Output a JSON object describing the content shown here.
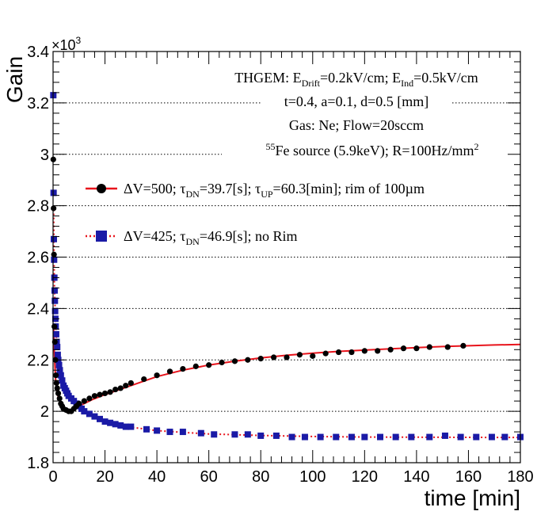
{
  "chart_data": {
    "type": "scatter",
    "xlabel": "time [min]",
    "ylabel": "Gain",
    "xlim": [
      0,
      180
    ],
    "ylim": [
      1.8,
      3.4
    ],
    "multiplier": "×10",
    "multiplier_exp": "3",
    "x_ticks": [
      {
        "value": 0,
        "label": "0"
      },
      {
        "value": 20,
        "label": "20"
      },
      {
        "value": 40,
        "label": "40"
      },
      {
        "value": 60,
        "label": "60"
      },
      {
        "value": 80,
        "label": "80"
      },
      {
        "value": 100,
        "label": "100"
      },
      {
        "value": 120,
        "label": "120"
      },
      {
        "value": 140,
        "label": "140"
      },
      {
        "value": 160,
        "label": "160"
      },
      {
        "value": 180,
        "label": "180"
      }
    ],
    "y_ticks": [
      {
        "value": 1.8,
        "label": "1.8"
      },
      {
        "value": 2.0,
        "label": "2"
      },
      {
        "value": 2.2,
        "label": "2.2"
      },
      {
        "value": 2.4,
        "label": "2.4"
      },
      {
        "value": 2.6,
        "label": "2.6"
      },
      {
        "value": 2.8,
        "label": "2.8"
      },
      {
        "value": 3.0,
        "label": "3"
      },
      {
        "value": 3.2,
        "label": "3.2"
      },
      {
        "value": 3.4,
        "label": "3.4"
      }
    ],
    "gridlines_y": [
      2.0,
      2.2,
      2.4,
      2.6,
      2.8,
      3.0,
      3.2
    ],
    "annotations": [
      {
        "id": "a1",
        "parts": [
          "THGEM: E",
          "Drift",
          "=0.2kV/cm; E",
          "Ind",
          "=0.5kV/cm"
        ]
      },
      {
        "id": "a2",
        "text": "t=0.4, a=0.1, d=0.5 [mm]"
      },
      {
        "id": "a3",
        "text": "Gas: Ne; Flow=20sccm"
      },
      {
        "id": "a4",
        "parts": [
          "55",
          "Fe source (5.9keV); R=100Hz/mm",
          "2"
        ]
      }
    ],
    "legend": [
      {
        "id": "black",
        "parts": [
          "ΔV=500; τ",
          "DN",
          "=39.7[s]; τ",
          "UP",
          "=60.3[min]; rim of 100µm"
        ],
        "marker": "circle",
        "color": "#000000",
        "line_color": "#e8141c",
        "line_style": "solid"
      },
      {
        "id": "blue",
        "parts": [
          "ΔV=425; τ",
          "DN",
          "=46.9[s]; no Rim"
        ],
        "marker": "square",
        "color": "#1a1aa6",
        "line_color": "#e8141c",
        "line_style": "dotted"
      }
    ],
    "series": [
      {
        "name": "ΔV=500; rim of 100µm",
        "marker": "circle",
        "color": "#000000",
        "points": [
          [
            0.1,
            2.98
          ],
          [
            0.2,
            2.79
          ],
          [
            0.35,
            2.61
          ],
          [
            0.5,
            2.33
          ],
          [
            0.7,
            2.27
          ],
          [
            0.9,
            2.2
          ],
          [
            1.1,
            2.14
          ],
          [
            1.3,
            2.11
          ],
          [
            1.6,
            2.09
          ],
          [
            2.0,
            2.07
          ],
          [
            2.5,
            2.05
          ],
          [
            3.0,
            2.03
          ],
          [
            3.5,
            2.02
          ],
          [
            4.0,
            2.01
          ],
          [
            5.0,
            2.005
          ],
          [
            6.0,
            2.0
          ],
          [
            7.0,
            2.0
          ],
          [
            8.0,
            2.01
          ],
          [
            9.0,
            2.02
          ],
          [
            10.0,
            2.03
          ],
          [
            12.0,
            2.04
          ],
          [
            14.0,
            2.05
          ],
          [
            16.0,
            2.06
          ],
          [
            18.0,
            2.065
          ],
          [
            20.0,
            2.07
          ],
          [
            22.0,
            2.075
          ],
          [
            24.0,
            2.085
          ],
          [
            26.0,
            2.09
          ],
          [
            28.0,
            2.1
          ],
          [
            30.0,
            2.11
          ],
          [
            35.0,
            2.125
          ],
          [
            40.0,
            2.14
          ],
          [
            45.0,
            2.155
          ],
          [
            50.0,
            2.165
          ],
          [
            55.0,
            2.175
          ],
          [
            60.0,
            2.18
          ],
          [
            65.0,
            2.19
          ],
          [
            70.0,
            2.195
          ],
          [
            75.0,
            2.2
          ],
          [
            80.0,
            2.205
          ],
          [
            85.0,
            2.21
          ],
          [
            90.0,
            2.21
          ],
          [
            95.0,
            2.22
          ],
          [
            100.0,
            2.215
          ],
          [
            105.0,
            2.225
          ],
          [
            110.0,
            2.23
          ],
          [
            115.0,
            2.23
          ],
          [
            120.0,
            2.235
          ],
          [
            125.0,
            2.235
          ],
          [
            130.0,
            2.24
          ],
          [
            135.0,
            2.245
          ],
          [
            140.0,
            2.245
          ],
          [
            145.0,
            2.25
          ],
          [
            152.0,
            2.25
          ],
          [
            158.0,
            2.255
          ]
        ],
        "fit": [
          [
            0.2,
            2.32
          ],
          [
            0.4,
            2.25
          ],
          [
            0.7,
            2.18
          ],
          [
            1.0,
            2.12
          ],
          [
            1.5,
            2.08
          ],
          [
            2.0,
            2.055
          ],
          [
            3.0,
            2.03
          ],
          [
            4.0,
            2.015
          ],
          [
            5.0,
            2.008
          ],
          [
            6.0,
            2.005
          ],
          [
            8.0,
            2.008
          ],
          [
            10.0,
            2.02
          ],
          [
            15.0,
            2.045
          ],
          [
            20.0,
            2.065
          ],
          [
            30.0,
            2.1
          ],
          [
            40.0,
            2.135
          ],
          [
            50.0,
            2.16
          ],
          [
            60.0,
            2.18
          ],
          [
            70.0,
            2.195
          ],
          [
            80.0,
            2.208
          ],
          [
            90.0,
            2.218
          ],
          [
            100.0,
            2.226
          ],
          [
            110.0,
            2.233
          ],
          [
            120.0,
            2.238
          ],
          [
            130.0,
            2.243
          ],
          [
            140.0,
            2.248
          ],
          [
            150.0,
            2.252
          ],
          [
            160.0,
            2.255
          ],
          [
            170.0,
            2.258
          ],
          [
            180.0,
            2.26
          ]
        ]
      },
      {
        "name": "ΔV=425; no Rim",
        "marker": "square",
        "color": "#1a1aa6",
        "points": [
          [
            0.1,
            3.23
          ],
          [
            0.2,
            2.85
          ],
          [
            0.3,
            2.67
          ],
          [
            0.4,
            2.59
          ],
          [
            0.5,
            2.52
          ],
          [
            0.6,
            2.47
          ],
          [
            0.7,
            2.43
          ],
          [
            0.8,
            2.39
          ],
          [
            0.9,
            2.36
          ],
          [
            1.0,
            2.33
          ],
          [
            1.2,
            2.3
          ],
          [
            1.4,
            2.27
          ],
          [
            1.6,
            2.25
          ],
          [
            1.8,
            2.22
          ],
          [
            2.0,
            2.2
          ],
          [
            2.3,
            2.18
          ],
          [
            2.6,
            2.16
          ],
          [
            3.0,
            2.14
          ],
          [
            3.5,
            2.12
          ],
          [
            4.0,
            2.1
          ],
          [
            4.5,
            2.09
          ],
          [
            5.0,
            2.08
          ],
          [
            5.5,
            2.07
          ],
          [
            6.0,
            2.06
          ],
          [
            7.0,
            2.05
          ],
          [
            8.0,
            2.04
          ],
          [
            9.0,
            2.03
          ],
          [
            10.0,
            2.02
          ],
          [
            11.0,
            2.01
          ],
          [
            12.0,
            2.0
          ],
          [
            14.0,
            1.99
          ],
          [
            16.0,
            1.98
          ],
          [
            18.0,
            1.97
          ],
          [
            20.0,
            1.96
          ],
          [
            22.0,
            1.955
          ],
          [
            24.0,
            1.95
          ],
          [
            26.0,
            1.945
          ],
          [
            28.0,
            1.94
          ],
          [
            30.0,
            1.94
          ],
          [
            36.0,
            1.93
          ],
          [
            40.0,
            1.925
          ],
          [
            45.0,
            1.92
          ],
          [
            50.0,
            1.92
          ],
          [
            57.0,
            1.915
          ],
          [
            62.0,
            1.91
          ],
          [
            70.0,
            1.91
          ],
          [
            75.0,
            1.91
          ],
          [
            80.0,
            1.905
          ],
          [
            86.0,
            1.905
          ],
          [
            92.0,
            1.9
          ],
          [
            97.0,
            1.9
          ],
          [
            103.0,
            1.9
          ],
          [
            109.0,
            1.9
          ],
          [
            115.0,
            1.9
          ],
          [
            120.0,
            1.9
          ],
          [
            126.0,
            1.9
          ],
          [
            132.0,
            1.9
          ],
          [
            138.0,
            1.9
          ],
          [
            145.0,
            1.9
          ],
          [
            151.0,
            1.905
          ],
          [
            157.0,
            1.9
          ],
          [
            163.0,
            1.9
          ],
          [
            169.0,
            1.9
          ],
          [
            174.0,
            1.9
          ],
          [
            180.0,
            1.9
          ]
        ],
        "fit": [
          [
            0.2,
            2.8
          ],
          [
            0.5,
            2.5
          ],
          [
            1.0,
            2.33
          ],
          [
            1.5,
            2.26
          ],
          [
            2.0,
            2.2
          ],
          [
            3.0,
            2.14
          ],
          [
            4.0,
            2.1
          ],
          [
            5.0,
            2.08
          ],
          [
            6.0,
            2.06
          ],
          [
            8.0,
            2.04
          ],
          [
            10.0,
            2.02
          ],
          [
            12.0,
            2.0
          ],
          [
            15.0,
            1.985
          ],
          [
            20.0,
            1.963
          ],
          [
            25.0,
            1.948
          ],
          [
            30.0,
            1.938
          ],
          [
            40.0,
            1.925
          ],
          [
            50.0,
            1.918
          ],
          [
            60.0,
            1.912
          ],
          [
            80.0,
            1.906
          ],
          [
            100.0,
            1.902
          ],
          [
            120.0,
            1.9
          ],
          [
            150.0,
            1.899
          ],
          [
            180.0,
            1.898
          ]
        ]
      }
    ]
  }
}
